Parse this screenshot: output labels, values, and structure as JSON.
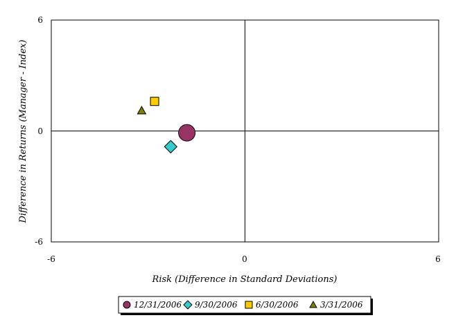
{
  "chart_data": {
    "type": "scatter",
    "xlabel": "Risk (Difference in Standard Deviations)",
    "ylabel": "Difference in Returns (Manager - Index)",
    "xlim": [
      -6,
      6
    ],
    "ylim": [
      -6,
      6
    ],
    "x_ticks": [
      "-6",
      "0",
      "6"
    ],
    "y_ticks": [
      "6",
      "0",
      "-6"
    ],
    "grid": false,
    "legend_position": "bottom",
    "series": [
      {
        "name": "12/31/2006",
        "marker": "circle",
        "color": "#993366",
        "x": -1.8,
        "y": -0.1
      },
      {
        "name": "9/30/2006",
        "marker": "diamond",
        "color": "#33CCCC",
        "x": -2.3,
        "y": -0.85
      },
      {
        "name": "6/30/2006",
        "marker": "square",
        "color": "#FFCC00",
        "x": -2.8,
        "y": 1.6
      },
      {
        "name": "3/31/2006",
        "marker": "triangle",
        "color": "#808000",
        "x": -3.2,
        "y": 1.1
      }
    ]
  }
}
